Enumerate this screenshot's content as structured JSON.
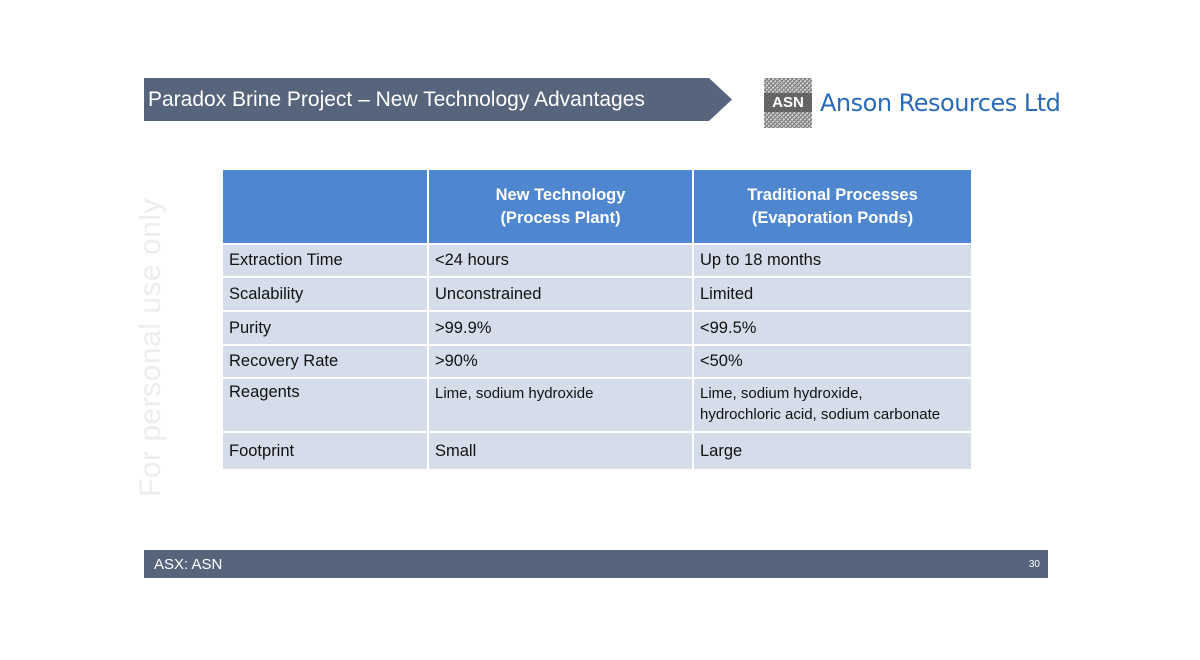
{
  "header": {
    "title": "Paradox Brine Project – New Technology Advantages",
    "banner_color": "#56657c"
  },
  "logo": {
    "mark": "ASN",
    "name": "Anson Resources Ltd",
    "name_color": "#2b6ab8"
  },
  "watermark": "For personal use only",
  "table": {
    "header_color": "#4f86d0",
    "row_color": "#d5dcea",
    "columns": [
      {
        "line1": "",
        "line2": ""
      },
      {
        "line1": "New Technology",
        "line2": "(Process Plant)"
      },
      {
        "line1": "Traditional Processes",
        "line2": "(Evaporation Ponds)"
      }
    ],
    "rows": [
      {
        "label": "Extraction Time",
        "new": "<24 hours",
        "traditional": "Up to 18 months"
      },
      {
        "label": "Scalability",
        "new": "Unconstrained",
        "traditional": "Limited"
      },
      {
        "label": "Purity",
        "new": ">99.9%",
        "traditional": "<99.5%"
      },
      {
        "label": "Recovery Rate",
        "new": ">90%",
        "traditional": "<50%"
      },
      {
        "label": "Reagents",
        "new": "Lime, sodium hydroxide",
        "traditional_line1": "Lime, sodium hydroxide,",
        "traditional_line2": "hydrochloric acid, sodium carbonate"
      },
      {
        "label": "Footprint",
        "new": "Small",
        "traditional": "Large"
      }
    ]
  },
  "footer": {
    "ticker": "ASX: ASN",
    "page_number": "30"
  }
}
